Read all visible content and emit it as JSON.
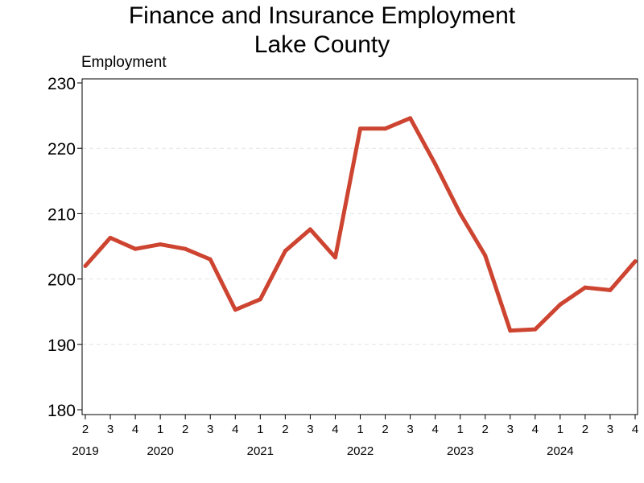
{
  "chart_data": {
    "type": "line",
    "title": "Finance and Insurance Employment",
    "subtitle": "Lake County",
    "xlabel": "",
    "ylabel": "Employment",
    "ylim": [
      180,
      230
    ],
    "yticks": [
      180,
      190,
      200,
      210,
      220,
      230
    ],
    "grid": "horizontal dashed",
    "line_color": "#cd4431",
    "x": [
      {
        "year": "2019",
        "quarter": "2"
      },
      {
        "year": "2019",
        "quarter": "3"
      },
      {
        "year": "2019",
        "quarter": "4"
      },
      {
        "year": "2020",
        "quarter": "1"
      },
      {
        "year": "2020",
        "quarter": "2"
      },
      {
        "year": "2020",
        "quarter": "3"
      },
      {
        "year": "2020",
        "quarter": "4"
      },
      {
        "year": "2021",
        "quarter": "1"
      },
      {
        "year": "2021",
        "quarter": "2"
      },
      {
        "year": "2021",
        "quarter": "3"
      },
      {
        "year": "2021",
        "quarter": "4"
      },
      {
        "year": "2022",
        "quarter": "1"
      },
      {
        "year": "2022",
        "quarter": "2"
      },
      {
        "year": "2022",
        "quarter": "3"
      },
      {
        "year": "2022",
        "quarter": "4"
      },
      {
        "year": "2023",
        "quarter": "1"
      },
      {
        "year": "2023",
        "quarter": "2"
      },
      {
        "year": "2023",
        "quarter": "3"
      },
      {
        "year": "2023",
        "quarter": "4"
      },
      {
        "year": "2024",
        "quarter": "1"
      },
      {
        "year": "2024",
        "quarter": "2"
      },
      {
        "year": "2024",
        "quarter": "3"
      },
      {
        "year": "2024",
        "quarter": "4"
      }
    ],
    "year_labels": [
      "2019",
      "2020",
      "2021",
      "2022",
      "2023",
      "2024"
    ],
    "values": [
      202.0,
      206.3,
      204.6,
      205.3,
      204.6,
      203.0,
      195.3,
      196.9,
      204.3,
      207.6,
      203.3,
      223.0,
      223.0,
      224.6,
      217.6,
      210.0,
      203.6,
      192.1,
      192.3,
      196.1,
      198.7,
      198.3,
      202.7
    ]
  }
}
